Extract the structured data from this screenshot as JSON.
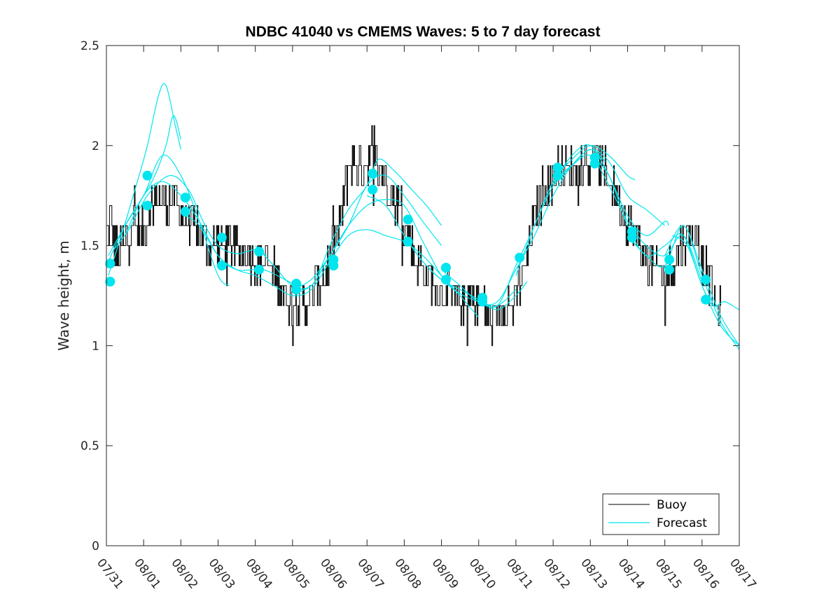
{
  "chart_data": {
    "type": "line",
    "title": "NDBC 41040 vs CMEMS Waves: 5 to 7 day forecast",
    "xlabel": "",
    "ylabel": "Wave height, m",
    "xlim": [
      0,
      17
    ],
    "ylim": [
      0,
      2.5
    ],
    "x_ticks": [
      0,
      1,
      2,
      3,
      4,
      5,
      6,
      7,
      8,
      9,
      10,
      11,
      12,
      13,
      14,
      15,
      16,
      17
    ],
    "x_tick_labels": [
      "07/31",
      "08/01",
      "08/02",
      "08/03",
      "08/04",
      "08/05",
      "08/06",
      "08/07",
      "08/08",
      "08/09",
      "08/10",
      "08/11",
      "08/12",
      "08/13",
      "08/14",
      "08/15",
      "08/16",
      "08/17"
    ],
    "y_ticks": [
      0,
      0.5,
      1,
      1.5,
      2,
      2.5
    ],
    "y_tick_labels": [
      "0",
      "0.5",
      "1",
      "1.5",
      "2",
      "2.5"
    ],
    "legend": {
      "position": "bottom-right",
      "entries": [
        {
          "label": "Buoy",
          "color": "#000000"
        },
        {
          "label": "Forecast",
          "color": "#00e5ee"
        }
      ]
    },
    "colors": {
      "buoy": "#000000",
      "forecast": "#00e5ee",
      "axes": "#262626"
    },
    "buoy_anchors": {
      "x": [
        0,
        0.1,
        0.3,
        0.5,
        0.7,
        0.9,
        1.1,
        1.3,
        1.5,
        1.8,
        2.1,
        2.4,
        2.7,
        3.0,
        3.3,
        3.6,
        3.9,
        4.2,
        4.5,
        4.8,
        5.1,
        5.35,
        5.6,
        5.8,
        6.0,
        6.2,
        6.35,
        6.5,
        6.7,
        6.9,
        7.0,
        7.15,
        7.3,
        7.5,
        7.7,
        7.9,
        8.1,
        8.3,
        8.6,
        8.9,
        9.2,
        9.5,
        9.8,
        10.1,
        10.3,
        10.5,
        10.7,
        10.9,
        11.1,
        11.3,
        11.5,
        11.7,
        11.9,
        12.1,
        12.4,
        12.7,
        13.0,
        13.3,
        13.6,
        13.9,
        14.2,
        14.5,
        14.8,
        15.0,
        15.2,
        15.5,
        15.8,
        16.0,
        16.2,
        16.4
      ],
      "y": [
        1.55,
        1.62,
        1.45,
        1.5,
        1.62,
        1.55,
        1.65,
        1.75,
        1.72,
        1.72,
        1.65,
        1.57,
        1.52,
        1.5,
        1.5,
        1.47,
        1.45,
        1.42,
        1.35,
        1.25,
        1.2,
        1.2,
        1.28,
        1.33,
        1.42,
        1.55,
        1.72,
        1.88,
        1.9,
        1.88,
        1.95,
        1.97,
        1.92,
        1.85,
        1.75,
        1.65,
        1.55,
        1.45,
        1.35,
        1.28,
        1.25,
        1.22,
        1.22,
        1.18,
        1.12,
        1.15,
        1.2,
        1.2,
        1.3,
        1.45,
        1.62,
        1.75,
        1.82,
        1.86,
        1.88,
        1.88,
        1.92,
        1.9,
        1.8,
        1.68,
        1.55,
        1.45,
        1.35,
        1.32,
        1.4,
        1.55,
        1.55,
        1.45,
        1.32,
        1.15
      ]
    },
    "forecast_series": [
      {
        "name": "fc1",
        "x": [
          0.05,
          0.4,
          0.8,
          1.1,
          1.4,
          1.6,
          1.85,
          2.0
        ],
        "y": [
          1.35,
          1.55,
          1.8,
          2.0,
          2.25,
          2.3,
          2.1,
          1.98
        ]
      },
      {
        "name": "fc2",
        "x": [
          0.05,
          0.5,
          1.0,
          1.3,
          1.6,
          1.8,
          2.0
        ],
        "y": [
          1.42,
          1.6,
          1.75,
          1.85,
          2.0,
          2.15,
          2.03
        ]
      },
      {
        "name": "fc3",
        "x": [
          0.05,
          0.5,
          1.0,
          1.5,
          2.0,
          2.5,
          3.0,
          3.3
        ],
        "y": [
          1.45,
          1.6,
          1.75,
          1.95,
          1.85,
          1.62,
          1.35,
          1.3
        ]
      },
      {
        "name": "fc4",
        "x": [
          0.2,
          0.6,
          1.1,
          1.7,
          2.2,
          2.6,
          3.0,
          3.5,
          4.0,
          4.3
        ],
        "y": [
          1.48,
          1.58,
          1.75,
          1.85,
          1.78,
          1.62,
          1.5,
          1.46,
          1.48,
          1.45
        ]
      },
      {
        "name": "fc5",
        "x": [
          0.5,
          1.0,
          1.5,
          2.0,
          2.5,
          3.0,
          3.5,
          4.2,
          4.8,
          5.1
        ],
        "y": [
          1.55,
          1.75,
          1.82,
          1.75,
          1.62,
          1.45,
          1.38,
          1.38,
          1.33,
          1.3
        ]
      },
      {
        "name": "fc6",
        "x": [
          2.1,
          2.5,
          3.0,
          3.5,
          4.0,
          4.5,
          5.0,
          5.5,
          6.0,
          6.5,
          7.0,
          7.5,
          8.0,
          8.5,
          9.0,
          9.5,
          10.0
        ],
        "y": [
          1.65,
          1.6,
          1.45,
          1.38,
          1.35,
          1.3,
          1.25,
          1.28,
          1.42,
          1.55,
          1.58,
          1.55,
          1.52,
          1.45,
          1.35,
          1.25,
          1.14
        ]
      },
      {
        "name": "fc7",
        "x": [
          4.0,
          4.5,
          5.0,
          5.5,
          6.0,
          6.5,
          7.0,
          7.5,
          8.0,
          8.5,
          9.0,
          9.5
        ],
        "y": [
          1.5,
          1.4,
          1.3,
          1.3,
          1.45,
          1.6,
          1.7,
          1.73,
          1.7,
          1.52,
          1.35,
          1.25
        ]
      },
      {
        "name": "fc8",
        "x": [
          5.0,
          5.5,
          6.0,
          6.5,
          7.0,
          7.5,
          8.0,
          8.5,
          9.0
        ],
        "y": [
          1.28,
          1.33,
          1.45,
          1.6,
          1.8,
          1.85,
          1.75,
          1.62,
          1.5
        ]
      },
      {
        "name": "fc9",
        "x": [
          5.2,
          5.6,
          6.0,
          6.5,
          7.0,
          7.3,
          7.7,
          8.2,
          8.6,
          9.0
        ],
        "y": [
          1.27,
          1.32,
          1.5,
          1.68,
          1.8,
          1.93,
          1.88,
          1.78,
          1.7,
          1.6
        ]
      },
      {
        "name": "fc10",
        "x": [
          7.0,
          7.5,
          8.0,
          8.5,
          9.0,
          9.5,
          10.0,
          10.5,
          11.0
        ],
        "y": [
          1.75,
          1.7,
          1.55,
          1.42,
          1.33,
          1.26,
          1.22,
          1.2,
          1.28
        ]
      },
      {
        "name": "fc11",
        "x": [
          8.0,
          8.5,
          9.0,
          9.5,
          10.0,
          10.5,
          11.0,
          11.3
        ],
        "y": [
          1.55,
          1.42,
          1.33,
          1.28,
          1.23,
          1.18,
          1.25,
          1.32
        ]
      },
      {
        "name": "fc12",
        "x": [
          9.0,
          9.5,
          10.0,
          10.5,
          11.0,
          11.5,
          12.0,
          12.5,
          13.0,
          13.4
        ],
        "y": [
          1.38,
          1.3,
          1.22,
          1.22,
          1.38,
          1.55,
          1.75,
          1.9,
          1.98,
          1.92
        ]
      },
      {
        "name": "fc13",
        "x": [
          10.0,
          10.5,
          11.0,
          11.5,
          12.0,
          12.5,
          13.0,
          13.5,
          14.0,
          14.2
        ],
        "y": [
          1.22,
          1.2,
          1.4,
          1.6,
          1.82,
          1.93,
          2.0,
          1.95,
          1.85,
          1.83
        ]
      },
      {
        "name": "fc14",
        "x": [
          11.0,
          11.5,
          12.0,
          12.5,
          13.0,
          13.5,
          14.0,
          14.5,
          15.0,
          15.1
        ],
        "y": [
          1.35,
          1.6,
          1.8,
          1.95,
          2.0,
          1.85,
          1.65,
          1.55,
          1.62,
          1.6
        ]
      },
      {
        "name": "fc15",
        "x": [
          12.0,
          12.5,
          13.0,
          13.5,
          14.0,
          14.5,
          15.0
        ],
        "y": [
          1.8,
          1.9,
          1.98,
          1.92,
          1.75,
          1.68,
          1.6
        ]
      },
      {
        "name": "fc16",
        "x": [
          12.0,
          12.5,
          13.0,
          13.5,
          14.0,
          14.5,
          15.0,
          15.5,
          16.0
        ],
        "y": [
          1.82,
          1.9,
          1.95,
          1.8,
          1.62,
          1.5,
          1.45,
          1.55,
          1.32
        ]
      },
      {
        "name": "fc17",
        "x": [
          13.0,
          13.5,
          14.0,
          14.5,
          15.0,
          15.5,
          16.0,
          16.5,
          17.0
        ],
        "y": [
          1.95,
          1.85,
          1.6,
          1.45,
          1.5,
          1.55,
          1.3,
          1.1,
          1.0
        ]
      },
      {
        "name": "fc18",
        "x": [
          14.0,
          14.5,
          15.0,
          15.5,
          16.0,
          16.5,
          17.0
        ],
        "y": [
          1.55,
          1.45,
          1.4,
          1.6,
          1.35,
          1.12,
          0.98
        ]
      },
      {
        "name": "fc19",
        "x": [
          15.0,
          15.5,
          16.0,
          16.5,
          17.0
        ],
        "y": [
          1.45,
          1.6,
          1.38,
          1.15,
          1.0
        ]
      },
      {
        "name": "fc20",
        "x": [
          15.2,
          15.6,
          16.0,
          16.3,
          16.6,
          16.9,
          17.0
        ],
        "y": [
          1.55,
          1.5,
          1.3,
          1.2,
          1.22,
          1.19,
          1.18
        ]
      }
    ],
    "forecast_markers": {
      "x": [
        0.1,
        0.1,
        1.1,
        1.1,
        2.12,
        2.12,
        3.1,
        3.1,
        4.1,
        4.1,
        5.1,
        5.1,
        6.1,
        6.1,
        7.15,
        7.15,
        8.1,
        8.1,
        9.12,
        9.12,
        10.1,
        10.1,
        11.1,
        12.12,
        12.12,
        13.12,
        13.12,
        14.12,
        14.12,
        15.12,
        15.12,
        16.1,
        16.1
      ],
      "y": [
        1.32,
        1.41,
        1.7,
        1.85,
        1.67,
        1.74,
        1.4,
        1.54,
        1.38,
        1.47,
        1.28,
        1.31,
        1.4,
        1.43,
        1.78,
        1.86,
        1.52,
        1.63,
        1.33,
        1.39,
        1.22,
        1.24,
        1.44,
        1.85,
        1.89,
        1.91,
        1.94,
        1.54,
        1.57,
        1.38,
        1.43,
        1.23,
        1.33
      ]
    }
  }
}
